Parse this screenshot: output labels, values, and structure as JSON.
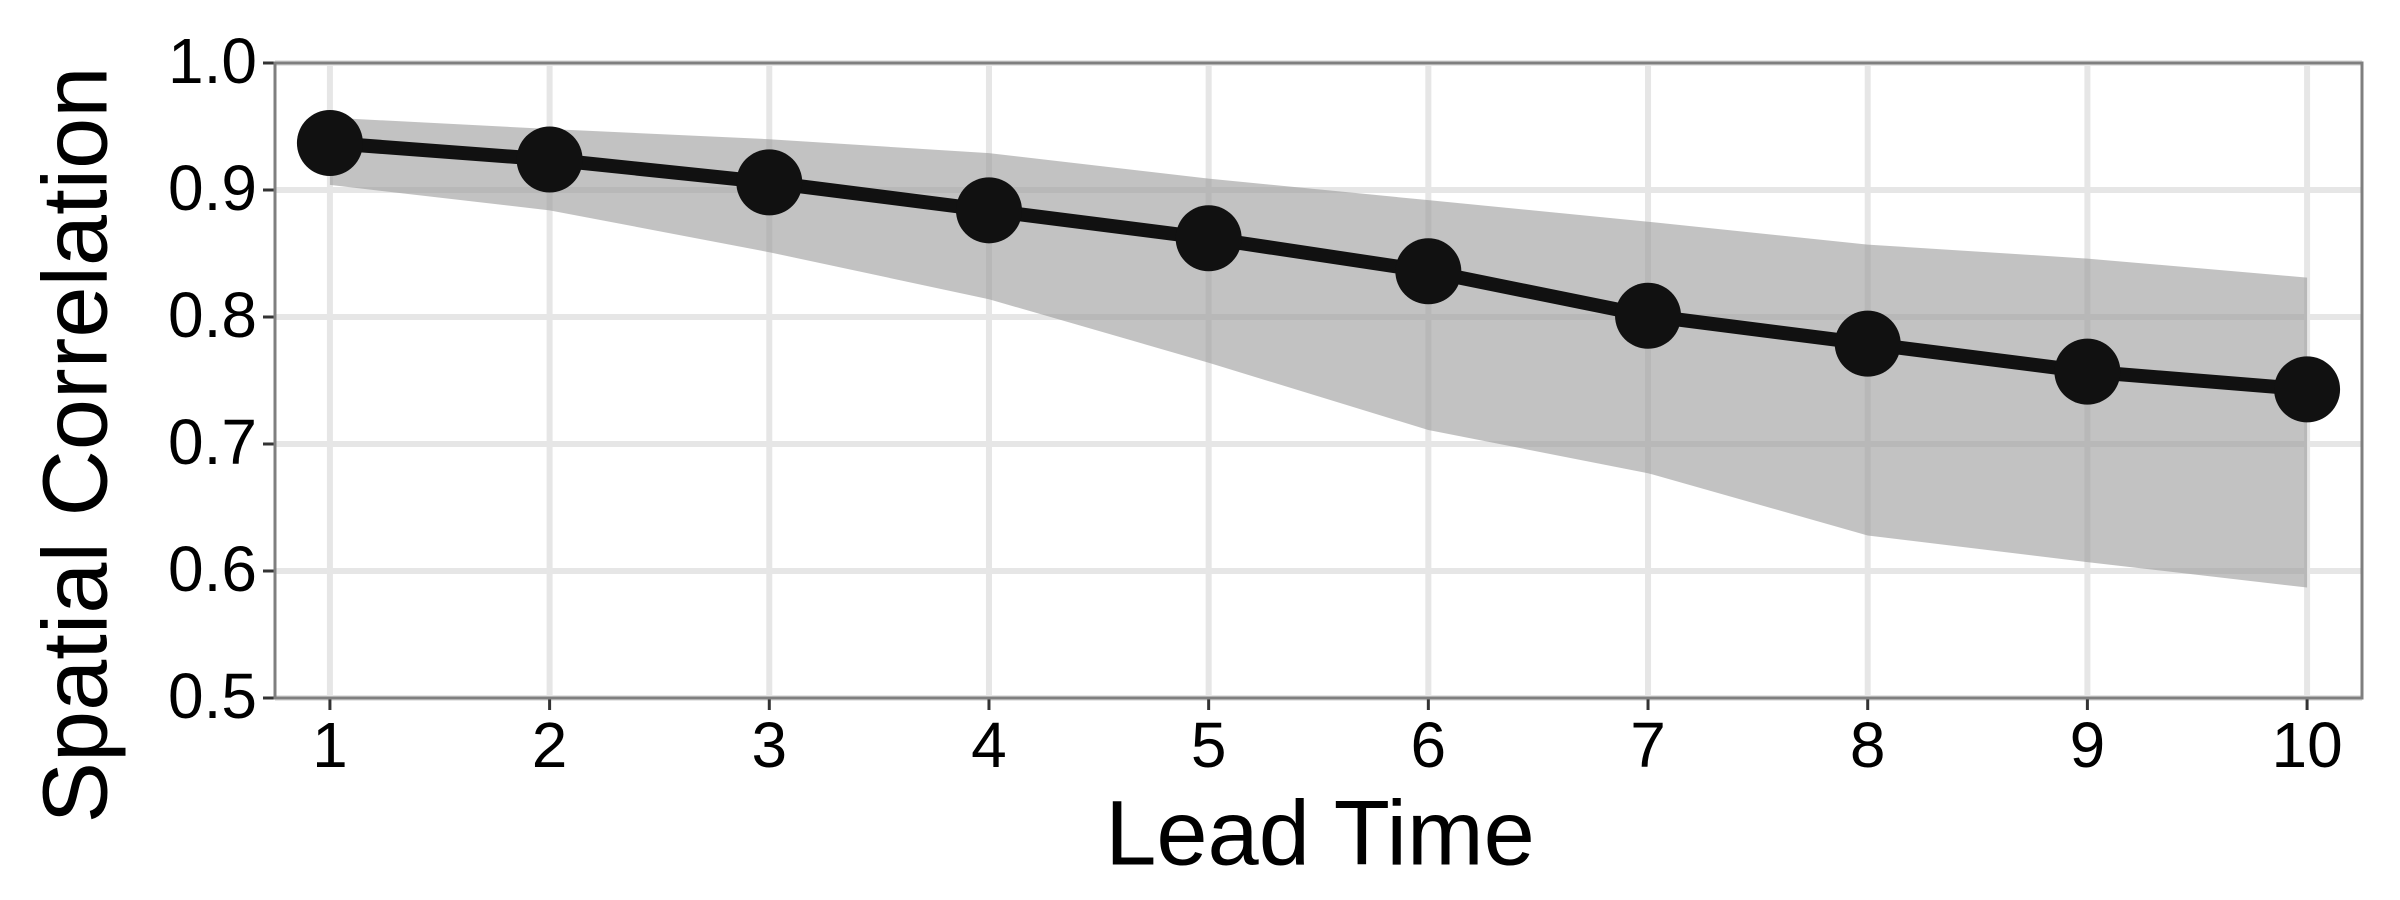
{
  "chart_data": {
    "type": "line",
    "x_label": "Lead Time",
    "y_label": "Spatial Correlation",
    "x": [
      1,
      2,
      3,
      4,
      5,
      6,
      7,
      8,
      9,
      10
    ],
    "series": [
      {
        "color": "#111111",
        "values": [
          0.937,
          0.924,
          0.906,
          0.884,
          0.862,
          0.836,
          0.801,
          0.779,
          0.757,
          0.743
        ]
      }
    ],
    "band": {
      "color": "#999999",
      "upper": [
        0.957,
        0.948,
        0.94,
        0.929,
        0.909,
        0.892,
        0.875,
        0.857,
        0.846,
        0.831
      ],
      "lower": [
        0.904,
        0.884,
        0.851,
        0.814,
        0.764,
        0.711,
        0.677,
        0.628,
        0.607,
        0.587
      ]
    },
    "xlim": [
      0.75,
      10.25
    ],
    "xticks": [
      1,
      2,
      3,
      4,
      5,
      6,
      7,
      8,
      9,
      10
    ],
    "ylim": [
      0.5,
      1.0
    ],
    "yticks": [
      0.5,
      0.6,
      0.7,
      0.8,
      0.9,
      {
        "value": 1.0,
        "label": "1.0"
      }
    ],
    "grid": true
  }
}
